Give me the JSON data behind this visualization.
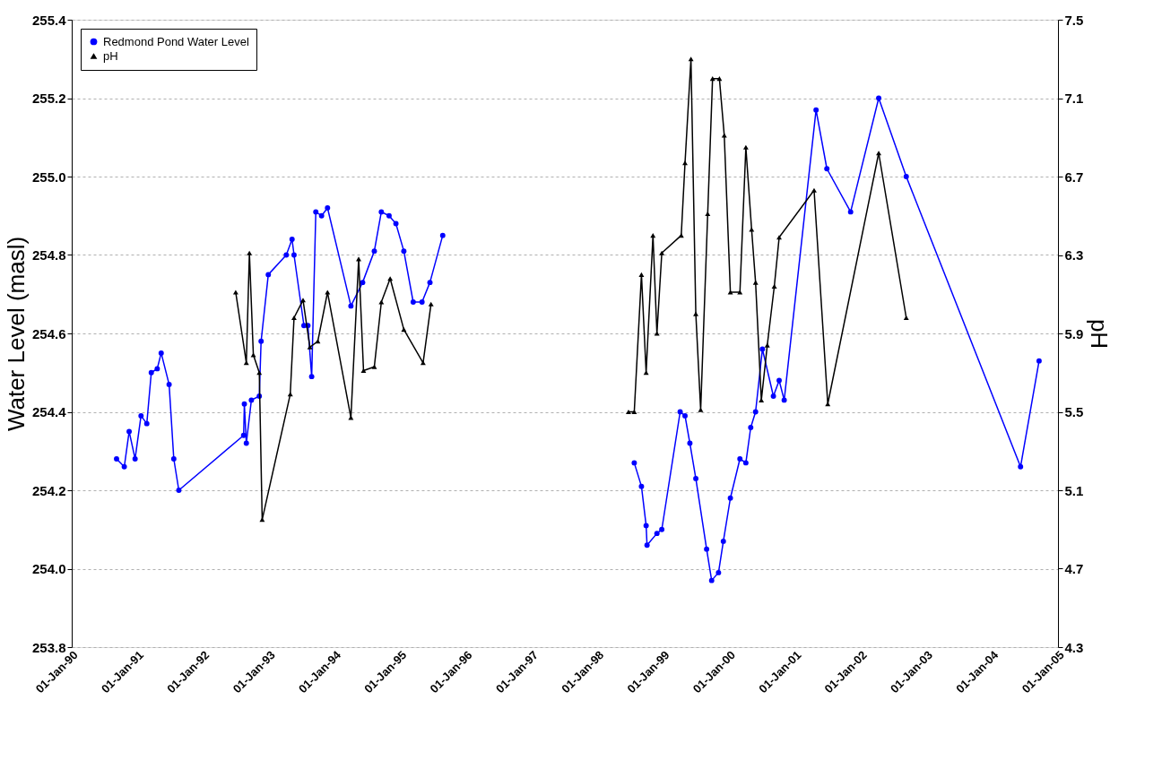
{
  "chart_data": {
    "type": "line",
    "ylabel": "Water Level (masl)",
    "y2label": "pH",
    "xlim": [
      "1990-01-01",
      "2005-01-01"
    ],
    "xticks": [
      {
        "value": "1990-01-01",
        "label": "01-Jan-90"
      },
      {
        "value": "1991-01-01",
        "label": "01-Jan-91"
      },
      {
        "value": "1992-01-01",
        "label": "01-Jan-92"
      },
      {
        "value": "1993-01-01",
        "label": "01-Jan-93"
      },
      {
        "value": "1994-01-01",
        "label": "01-Jan-94"
      },
      {
        "value": "1995-01-01",
        "label": "01-Jan-95"
      },
      {
        "value": "1996-01-01",
        "label": "01-Jan-96"
      },
      {
        "value": "1997-01-01",
        "label": "01-Jan-97"
      },
      {
        "value": "1998-01-01",
        "label": "01-Jan-98"
      },
      {
        "value": "1999-01-01",
        "label": "01-Jan-99"
      },
      {
        "value": "2000-01-01",
        "label": "01-Jan-00"
      },
      {
        "value": "2001-01-01",
        "label": "01-Jan-01"
      },
      {
        "value": "2002-01-01",
        "label": "01-Jan-02"
      },
      {
        "value": "2003-01-01",
        "label": "01-Jan-03"
      },
      {
        "value": "2004-01-01",
        "label": "01-Jan-04"
      },
      {
        "value": "2005-01-01",
        "label": "01-Jan-05"
      }
    ],
    "ylim": [
      253.8,
      255.4
    ],
    "yticks": [
      253.8,
      {
        "value": 254,
        "label": "254.0"
      },
      254.2,
      254.4,
      254.6,
      254.8,
      {
        "value": 255,
        "label": "255.0"
      },
      255.2,
      255.4
    ],
    "y2lim": [
      4.3,
      7.5
    ],
    "y2ticks": [
      4.3,
      4.7,
      5.1,
      5.5,
      5.9,
      6.3,
      6.7,
      7.1,
      7.5
    ],
    "grid": "y",
    "legend": "top left",
    "series": [
      {
        "name": "Redmond Pond Water Level",
        "color": "#0000ff",
        "marker": "circle",
        "x": [
          "1990-09-07",
          "1990-10-20",
          "1990-11-16",
          "1990-12-19",
          "1991-01-21",
          "1991-02-22",
          "1991-03-19",
          "1991-04-21",
          "1991-05-13",
          "1991-06-26",
          "1991-07-22",
          "1991-08-19",
          "1992-08-13",
          "1992-08-17",
          "1992-08-28",
          "1992-09-25",
          "1992-11-08",
          "1992-11-18",
          "1992-12-28",
          "1993-04-07",
          "1993-05-09",
          "1993-05-20",
          "1993-07-14",
          "1993-08-05",
          "1993-08-26",
          "1993-09-18",
          "1993-10-20",
          "1993-11-22",
          "1994-04-01",
          "1994-06-05",
          "1994-08-09",
          "1994-09-17",
          "1994-10-30",
          "1994-12-07",
          "1995-01-20",
          "1995-03-13",
          "1995-05-01",
          "1995-06-14",
          "1995-08-24",
          "1997-01-01",
          "1998-07-23",
          "1998-09-01",
          "1998-09-27",
          "1998-10-02",
          "1998-11-26",
          "1998-12-23",
          "1999-04-04",
          "1999-05-01",
          "1999-05-28",
          "1999-06-30",
          "1999-08-29",
          "1999-09-26",
          "1999-11-03",
          "1999-11-30",
          "2000-01-08",
          "2000-03-01",
          "2000-04-03",
          "2000-04-30",
          "2000-05-27",
          "2000-07-04",
          "2000-09-03",
          "2000-10-05",
          "2000-11-02",
          "2001-04-28",
          "2001-06-27",
          "2001-11-06",
          "2002-04-11",
          "2002-09-11",
          "2004-06-07",
          "2004-09-18"
        ],
        "values": [
          254.28,
          254.26,
          254.35,
          254.28,
          254.39,
          254.37,
          254.5,
          254.51,
          254.55,
          254.47,
          254.28,
          254.2,
          254.34,
          254.42,
          254.32,
          254.43,
          254.44,
          254.58,
          254.75,
          254.8,
          254.84,
          254.8,
          254.62,
          254.62,
          254.49,
          254.91,
          254.9,
          254.92,
          254.67,
          254.73,
          254.81,
          254.91,
          254.9,
          254.88,
          254.81,
          254.68,
          254.68,
          254.73,
          254.85,
          null,
          254.27,
          254.21,
          254.11,
          254.06,
          254.09,
          254.1,
          254.4,
          254.39,
          254.32,
          254.23,
          254.05,
          253.97,
          253.99,
          254.07,
          254.18,
          254.28,
          254.27,
          254.36,
          254.4,
          254.56,
          254.44,
          254.48,
          254.43,
          255.17,
          255.02,
          254.91,
          255.2,
          255.0,
          254.26,
          254.53
        ]
      },
      {
        "name": "pH",
        "color": "#000000",
        "marker": "triangle",
        "axis": "y2",
        "x": [
          "1992-06-30",
          "1992-08-28",
          "1992-09-14",
          "1992-10-06",
          "1992-11-08",
          "1992-11-24",
          "1993-04-29",
          "1993-05-20",
          "1993-07-09",
          "1993-08-16",
          "1993-09-29",
          "1993-11-22",
          "1994-04-01",
          "1994-05-14",
          "1994-06-10",
          "1994-08-09",
          "1994-09-17",
          "1994-11-05",
          "1995-01-20",
          "1995-05-07",
          "1995-06-20",
          "1997-01-01",
          "1998-06-21",
          "1998-07-23",
          "1998-09-01",
          "1998-09-27",
          "1998-11-04",
          "1998-11-26",
          "1998-12-23",
          "1999-04-10",
          "1999-05-01",
          "1999-06-03",
          "1999-06-30",
          "1999-07-27",
          "1999-09-04",
          "1999-10-01",
          "1999-11-08",
          "1999-12-05",
          "2000-01-08",
          "2000-03-01",
          "2000-04-03",
          "2000-05-05",
          "2000-05-27",
          "2000-06-28",
          "2000-07-31",
          "2000-09-08",
          "2000-10-05",
          "2001-04-17",
          "2001-07-02",
          "2002-04-11",
          "2002-09-11"
        ],
        "values": [
          6.11,
          5.75,
          6.31,
          5.79,
          5.7,
          4.95,
          5.59,
          5.98,
          6.07,
          5.83,
          5.86,
          6.11,
          5.47,
          6.28,
          5.71,
          5.73,
          6.06,
          6.18,
          5.92,
          5.75,
          6.05,
          null,
          5.5,
          5.5,
          6.2,
          5.7,
          6.4,
          5.9,
          6.31,
          6.4,
          6.77,
          7.3,
          6.0,
          5.51,
          6.51,
          7.2,
          7.2,
          6.91,
          6.11,
          6.11,
          6.85,
          6.43,
          6.16,
          5.56,
          5.84,
          6.14,
          6.39,
          6.63,
          5.54,
          6.82,
          5.98
        ]
      }
    ]
  }
}
